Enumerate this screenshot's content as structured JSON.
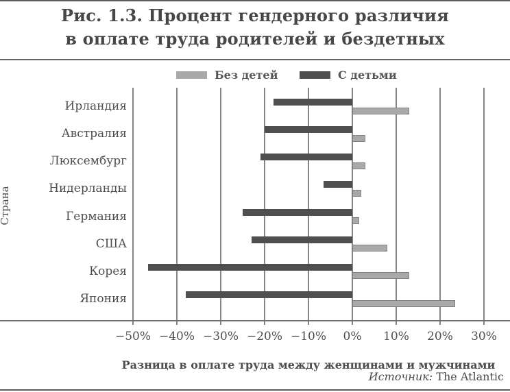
{
  "figure": {
    "title_line1": "Рис. 1.3. Процент гендерного различия",
    "title_line2": "в оплате труда родителей и бездетных",
    "source_prefix": "Источник:",
    "source_text": " The Atlantic"
  },
  "legend": [
    {
      "label": "Без детей",
      "color": "#a9a9a9"
    },
    {
      "label": "С детьми",
      "color": "#4f4f4f"
    }
  ],
  "colors": {
    "bar_childless": "#a9a9a9",
    "bar_with_children": "#4f4f4f",
    "gridline": "#868686",
    "axis": "#6f6f6f",
    "text": "#4e4e4e"
  },
  "chart_data": {
    "type": "bar",
    "orientation": "horizontal",
    "title": "Рис. 1.3. Процент гендерного различия в оплате труда родителей и бездетных",
    "xlabel": "Разница в оплате труда между женщинами и мужчинами",
    "ylabel": "Страна",
    "categories": [
      "Ирландия",
      "Австралия",
      "Люксембург",
      "Нидерланды",
      "Германия",
      "США",
      "Корея",
      "Япония"
    ],
    "series": [
      {
        "name": "Без детей",
        "color": "#a9a9a9",
        "values": [
          13,
          3,
          3,
          2,
          1.5,
          8,
          13,
          23.5
        ]
      },
      {
        "name": "С детьми",
        "color": "#4f4f4f",
        "values": [
          -18,
          -20,
          -21,
          -6.5,
          -25,
          -23,
          -46.5,
          -38
        ]
      }
    ],
    "xlim": [
      -50,
      30
    ],
    "xticks": [
      {
        "value": -50,
        "label": "−50%"
      },
      {
        "value": -40,
        "label": "−40%"
      },
      {
        "value": -30,
        "label": "−30%"
      },
      {
        "value": -20,
        "label": "−20%"
      },
      {
        "value": -10,
        "label": "−10%"
      },
      {
        "value": 0,
        "label": "0%"
      },
      {
        "value": 10,
        "label": "10%"
      },
      {
        "value": 20,
        "label": "20%"
      },
      {
        "value": 30,
        "label": "30%"
      }
    ],
    "grid": "vertical",
    "legend_position": "top",
    "source": "Источник: The Atlantic"
  }
}
